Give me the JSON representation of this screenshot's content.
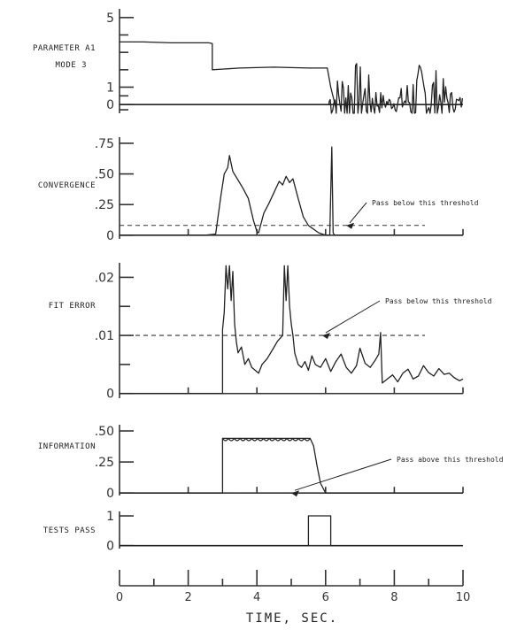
{
  "chart_data": {
    "type": "line",
    "xlabel": "TIME, SEC.",
    "x_ticks": [
      "0",
      "2",
      "4",
      "6",
      "8",
      "10"
    ],
    "xlim": [
      0,
      10
    ],
    "panels": [
      {
        "id": "param",
        "label_lines": [
          "PARAMETER A1",
          "MODE 3"
        ],
        "ticks": [
          {
            "v": 5,
            "t": "5"
          },
          {
            "v": 1,
            "t": "1"
          },
          {
            "v": 0,
            "t": "0"
          }
        ],
        "ylim": [
          -0.5,
          5.5
        ],
        "series": [
          {
            "x": [
              0,
              0.7,
              1.5,
              2.6,
              2.7,
              2.7,
              3.5,
              4.5,
              5.5,
              6.05,
              6.15,
              6.3
            ],
            "y": [
              3.6,
              3.6,
              3.55,
              3.55,
              3.5,
              2.0,
              2.1,
              2.15,
              2.1,
              2.1,
              1.0,
              -0.2
            ]
          },
          {
            "x": [
              0,
              6.0,
              6.1,
              10
            ],
            "y": [
              0,
              0,
              0,
              0
            ]
          }
        ],
        "noise": {
          "x0": 6.1,
          "x1": 10,
          "amp": 2.1
        }
      },
      {
        "id": "convergence",
        "label_lines": [
          "CONVERGENCE"
        ],
        "ticks": [
          {
            "v": 0.75,
            "t": ".75"
          },
          {
            "v": 0.5,
            "t": ".50"
          },
          {
            "v": 0.25,
            "t": ".25"
          },
          {
            "v": 0,
            "t": "0"
          }
        ],
        "ylim": [
          -0.03,
          0.8
        ],
        "threshold": 0.08,
        "threshold_note": "Pass below this threshold",
        "series": [
          {
            "x": [
              0,
              2.5,
              2.8,
              2.95,
              3.05,
              3.15,
              3.2,
              3.3,
              3.45,
              3.6,
              3.75,
              3.9,
              4.0,
              4.05,
              4.2,
              4.35,
              4.5,
              4.65,
              4.75,
              4.85,
              4.95,
              5.05,
              5.2,
              5.35,
              5.5,
              5.8,
              6.0,
              6.12,
              6.18,
              6.22,
              6.26,
              10
            ],
            "y": [
              0,
              0,
              0.01,
              0.32,
              0.5,
              0.55,
              0.65,
              0.52,
              0.45,
              0.38,
              0.3,
              0.12,
              0.03,
              0.02,
              0.18,
              0.26,
              0.35,
              0.44,
              0.41,
              0.48,
              0.43,
              0.46,
              0.3,
              0.15,
              0.08,
              0.02,
              0,
              0,
              0.72,
              0.02,
              0,
              0
            ]
          }
        ]
      },
      {
        "id": "fit_error",
        "label_lines": [
          "FIT ERROR"
        ],
        "ticks": [
          {
            "v": 0.02,
            "t": ".02"
          },
          {
            "v": 0.01,
            "t": ".01"
          },
          {
            "v": 0,
            "t": "0"
          }
        ],
        "ylim": [
          -0.0008,
          0.0225
        ],
        "threshold": 0.01,
        "threshold_note": "Pass below this threshold",
        "series": [
          {
            "x": [
              0,
              3.0,
              3.0,
              3.05,
              3.1,
              3.15,
              3.2,
              3.25,
              3.3,
              3.35,
              3.4,
              3.45,
              3.55,
              3.65,
              3.75,
              3.85,
              3.95,
              4.05,
              4.15,
              4.3,
              4.45,
              4.6,
              4.75,
              4.8,
              4.85,
              4.9,
              4.95,
              5.0,
              5.05,
              5.1,
              5.2,
              5.3,
              5.4,
              5.5,
              5.6,
              5.7,
              5.85,
              6.0,
              6.15,
              6.3,
              6.45,
              6.6,
              6.75,
              6.9,
              7.0,
              7.15,
              7.3,
              7.45,
              7.55,
              7.6,
              7.65,
              7.8,
              7.95,
              8.1,
              8.25,
              8.4,
              8.55,
              8.7,
              8.85,
              9.0,
              9.15,
              9.3,
              9.45,
              9.6,
              9.75,
              9.9,
              10
            ],
            "y": [
              0,
              0,
              0.011,
              0.014,
              0.022,
              0.018,
              0.022,
              0.016,
              0.021,
              0.012,
              0.009,
              0.007,
              0.008,
              0.005,
              0.006,
              0.0045,
              0.004,
              0.0035,
              0.005,
              0.006,
              0.0075,
              0.009,
              0.01,
              0.022,
              0.016,
              0.022,
              0.015,
              0.012,
              0.01,
              0.007,
              0.005,
              0.0045,
              0.0055,
              0.004,
              0.0065,
              0.005,
              0.0045,
              0.006,
              0.0038,
              0.0055,
              0.0068,
              0.0045,
              0.0035,
              0.0048,
              0.0078,
              0.0052,
              0.0045,
              0.0058,
              0.0068,
              0.0105,
              0.0018,
              0.0025,
              0.0032,
              0.002,
              0.0035,
              0.0042,
              0.0025,
              0.003,
              0.0048,
              0.0036,
              0.003,
              0.0043,
              0.0033,
              0.0035,
              0.0027,
              0.0022,
              0.0025
            ]
          }
        ]
      },
      {
        "id": "information",
        "label_lines": [
          "INFORMATION"
        ],
        "ticks": [
          {
            "v": 0.5,
            "t": ".50"
          },
          {
            "v": 0.25,
            "t": ".25"
          },
          {
            "v": 0,
            "t": "0"
          }
        ],
        "ylim": [
          -0.02,
          0.55
        ],
        "threshold": 0.0,
        "threshold_note": "Pass above this threshold",
        "series": [
          {
            "x": [
              0,
              3.0,
              3.0,
              5.55,
              5.65,
              5.75,
              5.85,
              6.0,
              10
            ],
            "y": [
              0,
              0,
              0.44,
              0.44,
              0.38,
              0.22,
              0.08,
              0,
              0
            ]
          }
        ],
        "ripple": {
          "x0": 3.0,
          "x1": 5.55,
          "base": 0.44,
          "amp": 0.018,
          "n": 15
        }
      },
      {
        "id": "tests_pass",
        "label_lines": [
          "TESTS PASS"
        ],
        "ticks": [
          {
            "v": 1,
            "t": "1"
          },
          {
            "v": 0,
            "t": "0"
          }
        ],
        "ylim": [
          -0.1,
          1.15
        ],
        "series": [
          {
            "x": [
              0,
              5.5,
              5.5,
              6.15,
              6.15,
              10
            ],
            "y": [
              0,
              0,
              1,
              1,
              0,
              0
            ]
          }
        ]
      }
    ]
  }
}
